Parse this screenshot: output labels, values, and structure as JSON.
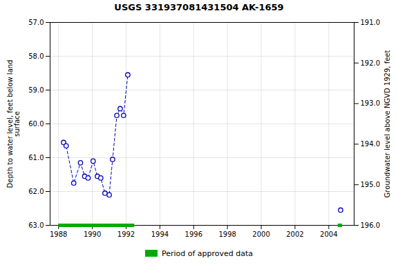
{
  "chart_data": {
    "type": "line",
    "title": "USGS 331937081431504 AK-1659",
    "ylabel": "Depth to water level, feet below land\nsurface",
    "y2label": "Groundwater level above NGVD 1929, feet",
    "xlim": [
      1987.5,
      2005.5
    ],
    "xticks": [
      1988,
      1990,
      1992,
      1994,
      1996,
      1998,
      2000,
      2002,
      2004
    ],
    "ylim": [
      63.0,
      57.0
    ],
    "yticks": [
      {
        "value": 57.0,
        "label": "57.0"
      },
      {
        "value": 58.0,
        "label": "58.0"
      },
      {
        "value": 59.0,
        "label": "59.0"
      },
      {
        "value": 60.0,
        "label": "60.0"
      },
      {
        "value": 61.0,
        "label": "61.0"
      },
      {
        "value": 62.0,
        "label": "62.0"
      },
      {
        "value": 63.0,
        "label": "63.0"
      }
    ],
    "y2lim": [
      196.0,
      191.0
    ],
    "y2ticks": [
      {
        "value": 191.0,
        "label": "191.0"
      },
      {
        "value": 192.0,
        "label": "192.0"
      },
      {
        "value": 193.0,
        "label": "193.0"
      },
      {
        "value": 194.0,
        "label": "194.0"
      },
      {
        "value": 195.0,
        "label": "195.0"
      },
      {
        "value": 196.0,
        "label": "196.0"
      }
    ],
    "grid": true,
    "legend": "bottom",
    "series": [
      {
        "color": "#0000bb",
        "marker": "o",
        "line_style": "dashed",
        "x": [
          1988.3,
          1988.45,
          1988.9,
          1989.3,
          1989.55,
          1989.75,
          1990.05,
          1990.3,
          1990.5,
          1990.75,
          1991.0,
          1991.2,
          1991.45,
          1991.65,
          1991.85,
          1992.1
        ],
        "values": [
          60.55,
          60.65,
          61.75,
          61.15,
          61.55,
          61.6,
          61.1,
          61.55,
          61.6,
          62.05,
          62.1,
          61.05,
          59.75,
          59.55,
          59.75,
          58.55
        ]
      },
      {
        "color": "#0000bb",
        "marker": "o",
        "line_style": "none",
        "x": [
          2004.7
        ],
        "values": [
          62.55
        ]
      }
    ],
    "approved_periods": {
      "name": "Period of approved data",
      "color": "#00aa00",
      "ranges": [
        [
          1988.0,
          1992.5
        ],
        [
          2004.55,
          2004.8
        ]
      ]
    }
  }
}
